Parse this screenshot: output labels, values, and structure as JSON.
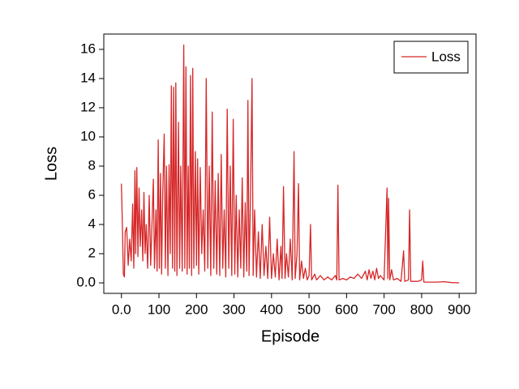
{
  "chart_data": {
    "type": "line",
    "xlabel": "Episode",
    "ylabel": "Loss",
    "xlim": [
      -47,
      945
    ],
    "ylim": [
      -0.72,
      17.05
    ],
    "xticks": [
      {
        "value": 0,
        "label": "0.0"
      },
      100,
      200,
      300,
      400,
      500,
      600,
      700,
      800,
      900
    ],
    "yticks": [
      {
        "value": 0,
        "label": "0.0"
      },
      2,
      4,
      6,
      8,
      10,
      12,
      14,
      16
    ],
    "legend": "upper right",
    "series": [
      {
        "name": "Loss",
        "color": "#d62728",
        "x": [
          0,
          2,
          5,
          8,
          10,
          14,
          18,
          22,
          26,
          30,
          33,
          36,
          38,
          41,
          44,
          47,
          50,
          54,
          57,
          60,
          63,
          66,
          70,
          74,
          78,
          82,
          85,
          88,
          92,
          95,
          98,
          101,
          104,
          107,
          110,
          114,
          117,
          120,
          124,
          127,
          130,
          133,
          136,
          139,
          142,
          145,
          148,
          152,
          155,
          158,
          162,
          166,
          169,
          172,
          175,
          178,
          181,
          184,
          187,
          190,
          193,
          197,
          200,
          203,
          206,
          210,
          214,
          218,
          222,
          226,
          230,
          234,
          238,
          242,
          246,
          250,
          254,
          258,
          262,
          266,
          270,
          274,
          278,
          282,
          286,
          290,
          294,
          298,
          302,
          306,
          310,
          314,
          318,
          322,
          326,
          330,
          334,
          337,
          340,
          344,
          348,
          351,
          355,
          360,
          365,
          370,
          375,
          380,
          385,
          390,
          395,
          400,
          405,
          410,
          415,
          420,
          425,
          428,
          432,
          436,
          440,
          445,
          450,
          455,
          460,
          463,
          468,
          472,
          475,
          480,
          485,
          490,
          495,
          500,
          504,
          507,
          515,
          520,
          530,
          540,
          550,
          560,
          570,
          574,
          577,
          580,
          590,
          600,
          610,
          620,
          630,
          640,
          650,
          655,
          660,
          665,
          670,
          675,
          680,
          685,
          690,
          700,
          708,
          710,
          712,
          715,
          720,
          725,
          735,
          745,
          752,
          755,
          765,
          768,
          771,
          780,
          790,
          800,
          803,
          806,
          820,
          840,
          860,
          880,
          900
        ],
        "values": [
          6.8,
          4.5,
          0.6,
          0.4,
          3.5,
          3.8,
          1.2,
          3.0,
          1.5,
          5.4,
          1.0,
          7.7,
          2.0,
          7.9,
          1.8,
          6.5,
          2.5,
          5.0,
          1.5,
          6.2,
          2.0,
          4.0,
          1.0,
          6.0,
          1.2,
          4.5,
          7.1,
          1.0,
          5.0,
          0.8,
          9.8,
          1.0,
          7.5,
          0.6,
          6.0,
          10.2,
          1.0,
          8.0,
          0.5,
          8.1,
          2.0,
          13.5,
          1.0,
          13.4,
          0.8,
          13.7,
          0.5,
          11.0,
          1.0,
          8.0,
          0.8,
          16.3,
          1.0,
          14.8,
          0.6,
          8.0,
          1.0,
          14.2,
          0.5,
          14.7,
          1.0,
          9.0,
          1.2,
          8.5,
          0.6,
          7.9,
          2.0,
          5.0,
          0.8,
          14.0,
          1.0,
          8.0,
          0.5,
          11.7,
          1.0,
          7.0,
          0.6,
          7.5,
          0.5,
          8.8,
          1.0,
          5.0,
          0.4,
          11.9,
          1.0,
          8.0,
          0.5,
          11.2,
          0.6,
          6.0,
          0.4,
          5.0,
          1.0,
          7.2,
          0.4,
          5.5,
          0.8,
          12.5,
          0.5,
          6.0,
          14.0,
          0.5,
          5.0,
          0.4,
          3.5,
          0.3,
          4.0,
          0.5,
          2.5,
          0.3,
          4.5,
          0.3,
          2.0,
          0.4,
          3.0,
          0.2,
          2.5,
          0.3,
          6.6,
          0.3,
          2.0,
          0.4,
          3.0,
          0.2,
          9.0,
          0.3,
          2.0,
          6.8,
          0.2,
          1.5,
          0.3,
          1.0,
          0.2,
          0.5,
          4.0,
          0.2,
          0.6,
          0.2,
          0.5,
          0.2,
          0.4,
          0.2,
          0.5,
          0.2,
          6.7,
          0.2,
          0.3,
          0.2,
          0.4,
          0.3,
          0.6,
          0.3,
          0.8,
          0.2,
          0.9,
          0.3,
          0.8,
          0.2,
          1.0,
          0.3,
          0.5,
          0.2,
          6.5,
          0.3,
          5.8,
          0.2,
          0.9,
          0.2,
          0.3,
          0.1,
          2.2,
          0.1,
          0.2,
          5.0,
          0.1,
          0.1,
          0.1,
          0.2,
          1.5,
          0.05,
          0.05,
          0.05,
          0.08,
          0.02,
          0.0
        ]
      }
    ]
  }
}
